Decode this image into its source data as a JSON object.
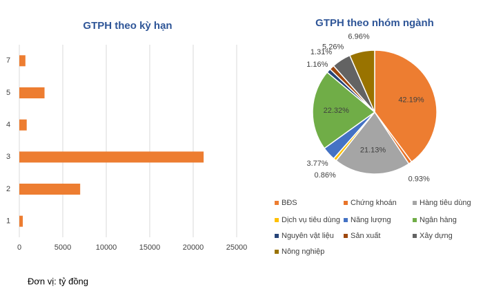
{
  "chart_data": [
    {
      "type": "barh",
      "title": "GTPH theo kỳ hạn",
      "categories": [
        "1",
        "2",
        "3",
        "4",
        "5",
        "7"
      ],
      "values": [
        400,
        7000,
        21200,
        850,
        2900,
        700
      ],
      "color": "#ed7d31",
      "xlim": [
        0,
        25000
      ],
      "xticks": [
        0,
        5000,
        10000,
        15000,
        20000,
        25000
      ],
      "grid": true,
      "note": "Đơn vị: tỷ đồng"
    },
    {
      "type": "pie",
      "title": "GTPH theo nhóm ngành",
      "categories": [
        "BĐS",
        "Chứng khoán",
        "Hàng tiêu dùng",
        "Dịch vụ tiêu dùng",
        "Năng lượng",
        "Ngân hàng",
        "Nguyên vật liệu",
        "Sản xuất",
        "Xây dựng",
        "Nông nghiệp"
      ],
      "values": [
        42.19,
        0.93,
        21.13,
        0.86,
        3.77,
        22.32,
        1.16,
        1.31,
        5.26,
        6.96
      ],
      "value_labels": [
        "42.19%",
        "0.93%",
        "21.13%",
        "0.86%",
        "3.77%",
        "22.32%",
        "1.16%",
        "1.31%",
        "5.26%",
        "6.96%"
      ],
      "colors": [
        "#ed7d31",
        "#e8742a",
        "#a5a5a5",
        "#ffc000",
        "#4472c4",
        "#70ad47",
        "#264478",
        "#9e480e",
        "#636363",
        "#997300"
      ]
    }
  ]
}
